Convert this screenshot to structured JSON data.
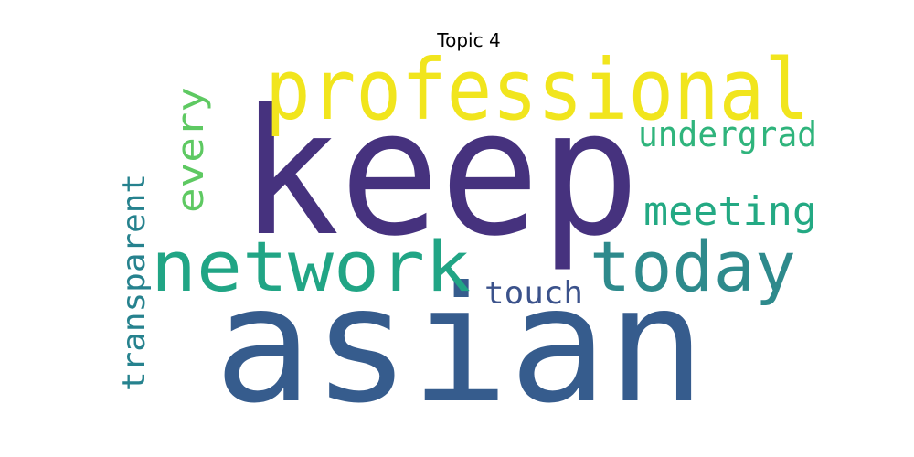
{
  "title": "Topic 4",
  "words": [
    {
      "text": "keep",
      "color": "#46327e",
      "rotated": false
    },
    {
      "text": "asian",
      "color": "#365c8d",
      "rotated": false
    },
    {
      "text": "professional",
      "color": "#f1e51d",
      "rotated": false
    },
    {
      "text": "network",
      "color": "#21a585",
      "rotated": false
    },
    {
      "text": "today",
      "color": "#2e8a8c",
      "rotated": false
    },
    {
      "text": "meeting",
      "color": "#23a983",
      "rotated": false
    },
    {
      "text": "undergrad",
      "color": "#2fb47c",
      "rotated": false
    },
    {
      "text": "touch",
      "color": "#3b528b",
      "rotated": false
    },
    {
      "text": "every",
      "color": "#5ec962",
      "rotated": true
    },
    {
      "text": "transparent",
      "color": "#26828e",
      "rotated": true
    }
  ]
}
